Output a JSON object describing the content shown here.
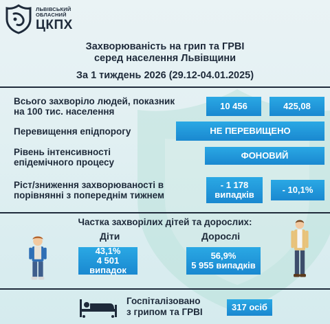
{
  "logo": {
    "line1": "ЛЬВІВСЬКИЙ",
    "line2": "ОБЛАСНИЙ",
    "name": "ЦКПХ"
  },
  "title": {
    "line1": "Захворюваність на грип та ГРВІ",
    "line2": "серед населення Львівщини",
    "period": "За 1 тиждень 2026 (29.12-04.01.2025)"
  },
  "rows": {
    "total": {
      "label_line1": "Всього захворіло людей, показник",
      "label_line2": "на 100 тис. населення",
      "count": "10 456",
      "rate": "425,08"
    },
    "threshold": {
      "label": "Перевищення епідпорогу",
      "value": "НЕ ПЕРЕВИЩЕНО"
    },
    "intensity": {
      "label_line1": "Рівень інтенсивності",
      "label_line2": "епідемічного процесу",
      "value": "ФОНОВИЙ"
    },
    "change": {
      "label_line1": "Ріст/зниження захворюваності   в",
      "label_line2": "порівнянні з попереднім тижнем",
      "cases_line1": "- 1 178",
      "cases_line2": "випадків",
      "percent": "- 10,1%"
    }
  },
  "share": {
    "title": "Частка захворілих дітей та дорослих:",
    "children": {
      "label": "Діти",
      "percent": "43,1%",
      "cases": "4 501 випадок"
    },
    "adults": {
      "label": "Дорослі",
      "percent": "56,9%",
      "cases": "5 955 випадків"
    }
  },
  "hospital": {
    "line1": "Госпіталізовано",
    "line2": "з грипом та ГРВІ",
    "value": "317 осіб"
  },
  "colors": {
    "accent": "#1a88d0",
    "text": "#1e2a3a",
    "background": "#dcedf0"
  }
}
